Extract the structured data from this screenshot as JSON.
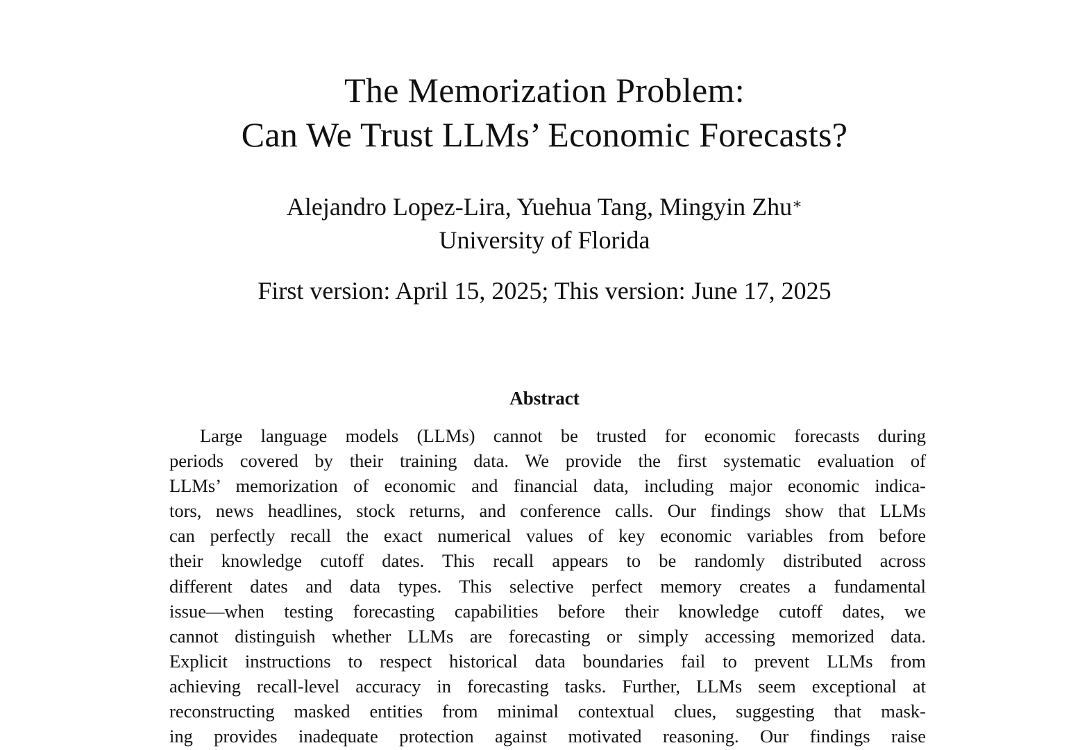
{
  "paper": {
    "title_line_1": "The Memorization Problem:",
    "title_line_2": "Can We Trust LLMs’ Economic Forecasts?",
    "authors": "Alejandro Lopez-Lira, Yuehua Tang, Mingyin Zhu",
    "author_footnote_mark": "∗",
    "affiliation": "University of Florida",
    "dates": "First version: April 15, 2025; This version: June 17, 2025",
    "abstract_heading": "Abstract",
    "abstract_lines": [
      "Large language models (LLMs) cannot be trusted for economic forecasts during",
      "periods covered by their training data. We provide the first systematic evaluation of",
      "LLMs’ memorization of economic and financial data, including major economic indica-",
      "tors, news headlines, stock returns, and conference calls. Our findings show that LLMs",
      "can perfectly recall the exact numerical values of key economic variables from before",
      "their knowledge cutoff dates. This recall appears to be randomly distributed across",
      "different dates and data types. This selective perfect memory creates a fundamental",
      "issue—when testing forecasting capabilities before their knowledge cutoff dates, we",
      "cannot distinguish whether LLMs are forecasting or simply accessing memorized data.",
      "Explicit instructions to respect historical data boundaries fail to prevent LLMs from",
      "achieving recall-level accuracy in forecasting tasks. Further, LLMs seem exceptional at",
      "reconstructing masked entities from minimal contextual clues, suggesting that mask-",
      "ing provides inadequate protection against motivated reasoning. Our findings raise"
    ]
  }
}
